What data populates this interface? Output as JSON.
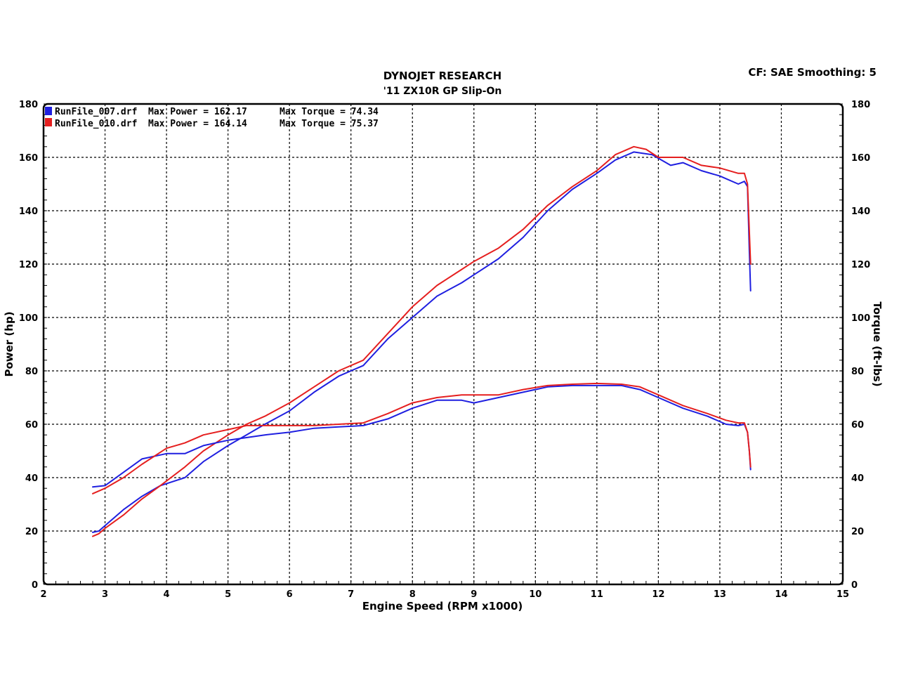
{
  "header": {
    "title": "DYNOJET RESEARCH",
    "subtitle": "'11 ZX10R GP Slip-On",
    "settings": "CF: SAE  Smoothing: 5"
  },
  "chart_data": {
    "type": "line",
    "title": "DYNOJET RESEARCH",
    "subtitle": "'11 ZX10R GP Slip-On",
    "xlabel": "Engine Speed (RPM x1000)",
    "ylabel_left": "Power (hp)",
    "ylabel_right": "Torque (ft-lbs)",
    "xlim": [
      2,
      15
    ],
    "ylim": [
      0,
      180
    ],
    "xticks": [
      2,
      3,
      4,
      5,
      6,
      7,
      8,
      9,
      10,
      11,
      12,
      13,
      14,
      15
    ],
    "yticks": [
      0,
      20,
      40,
      60,
      80,
      100,
      120,
      140,
      160,
      180
    ],
    "grid": true,
    "legend_position": "top-left",
    "legend": [
      {
        "file": "RunFile_007.drf",
        "power_label": "Max Power = 162.17",
        "torque_label": "Max Torque = 74.34",
        "color": "#1f1fe0"
      },
      {
        "file": "RunFile_010.drf",
        "power_label": "Max Power = 164.14",
        "torque_label": "Max Torque = 75.37",
        "color": "#e51f1f"
      }
    ],
    "series": [
      {
        "name": "RunFile_007.drf",
        "measure": "Power (hp)",
        "color": "#1f1fe0",
        "x": [
          2.8,
          2.9,
          3.0,
          3.3,
          3.6,
          3.9,
          4.3,
          4.6,
          5.0,
          5.3,
          5.6,
          6.0,
          6.4,
          6.8,
          7.2,
          7.6,
          8.0,
          8.4,
          8.8,
          9.0,
          9.4,
          9.8,
          10.2,
          10.6,
          11.0,
          11.3,
          11.6,
          11.9,
          12.2,
          12.4,
          12.7,
          13.0,
          13.3,
          13.4,
          13.45,
          13.48,
          13.5
        ],
        "y": [
          19.5,
          20,
          22,
          28,
          33,
          37,
          40,
          46,
          52,
          56,
          60,
          65,
          72,
          78,
          82,
          92,
          100,
          108,
          113,
          116,
          122,
          130,
          140,
          148,
          154,
          159,
          162,
          161,
          157,
          158,
          155,
          153,
          150,
          151,
          149,
          125,
          110
        ]
      },
      {
        "name": "RunFile_010.drf",
        "measure": "Power (hp)",
        "color": "#e51f1f",
        "x": [
          2.8,
          2.9,
          3.0,
          3.3,
          3.6,
          3.9,
          4.3,
          4.6,
          5.0,
          5.3,
          5.6,
          6.0,
          6.4,
          6.8,
          7.2,
          7.6,
          8.0,
          8.4,
          8.8,
          9.0,
          9.4,
          9.8,
          10.2,
          10.6,
          11.0,
          11.3,
          11.6,
          11.8,
          12.0,
          12.4,
          12.7,
          13.0,
          13.3,
          13.4,
          13.45,
          13.5
        ],
        "y": [
          18,
          19,
          21,
          26,
          32,
          37,
          44,
          50,
          56,
          60,
          63,
          68,
          74,
          80,
          84,
          94,
          104,
          112,
          118,
          121,
          126,
          133,
          142,
          149,
          155,
          161,
          164,
          163,
          160,
          160,
          157,
          156,
          154,
          154,
          150,
          120
        ]
      },
      {
        "name": "RunFile_007.drf",
        "measure": "Torque (ft-lbs)",
        "color": "#1f1fe0",
        "x": [
          2.8,
          3.0,
          3.3,
          3.6,
          4.0,
          4.3,
          4.6,
          5.0,
          5.3,
          5.6,
          6.0,
          6.4,
          6.8,
          7.2,
          7.6,
          8.0,
          8.4,
          8.8,
          9.0,
          9.4,
          9.8,
          10.2,
          10.6,
          11.0,
          11.4,
          11.7,
          12.0,
          12.4,
          12.8,
          13.1,
          13.3,
          13.4,
          13.45,
          13.48,
          13.5
        ],
        "y": [
          36.5,
          37,
          42,
          47,
          49,
          49,
          52,
          54,
          55,
          56,
          57,
          58.5,
          59,
          59.5,
          62,
          66,
          69,
          69,
          68,
          70,
          72,
          74,
          74.5,
          74.5,
          74.5,
          73,
          70,
          66,
          63,
          60,
          59.5,
          60,
          57,
          50,
          43
        ]
      },
      {
        "name": "RunFile_010.drf",
        "measure": "Torque (ft-lbs)",
        "color": "#e51f1f",
        "x": [
          2.8,
          3.0,
          3.3,
          3.6,
          4.0,
          4.3,
          4.6,
          5.0,
          5.3,
          5.6,
          6.0,
          6.4,
          6.8,
          7.2,
          7.6,
          8.0,
          8.4,
          8.8,
          9.0,
          9.4,
          9.8,
          10.2,
          10.6,
          11.0,
          11.4,
          11.7,
          12.0,
          12.4,
          12.8,
          13.1,
          13.3,
          13.4,
          13.45,
          13.48,
          13.5
        ],
        "y": [
          34,
          36,
          40,
          45,
          51,
          53,
          56,
          58,
          59.5,
          59.5,
          59.5,
          59.5,
          60,
          60.5,
          64,
          68,
          70,
          71,
          71,
          71,
          73,
          74.5,
          75,
          75.3,
          75,
          74,
          71,
          67,
          64,
          61.5,
          60.5,
          60.5,
          57,
          50,
          44
        ]
      }
    ]
  }
}
